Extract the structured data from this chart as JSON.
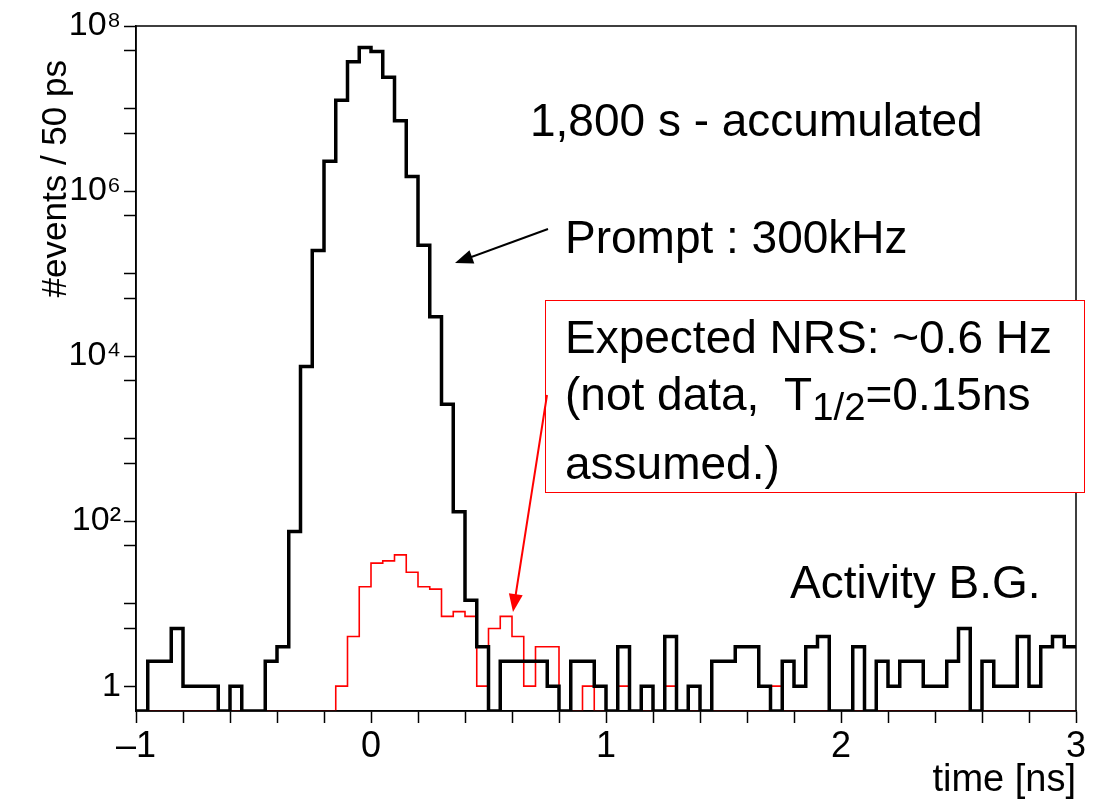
{
  "chart_data": {
    "type": "histogram",
    "xlabel": "time [ns]",
    "ylabel": "#events / 50 ps",
    "log": "y",
    "bins": [
      -1,
      -0.95,
      -0.9,
      -0.85,
      -0.8,
      -0.75,
      -0.7,
      -0.65,
      -0.6,
      -0.55,
      -0.5,
      -0.45,
      -0.4,
      -0.35,
      -0.3,
      -0.25,
      -0.2,
      -0.15,
      -0.1,
      -0.05,
      0,
      0.05,
      0.1,
      0.15,
      0.2,
      0.25,
      0.3,
      0.35,
      0.4,
      0.45,
      0.5,
      0.55,
      0.6,
      0.65,
      0.7,
      0.75,
      0.8,
      0.85,
      0.9,
      0.95,
      1,
      1.05,
      1.1,
      1.15,
      1.2,
      1.25,
      1.3,
      1.35,
      1.4,
      1.45,
      1.5,
      1.55,
      1.6,
      1.65,
      1.7,
      1.75,
      1.8,
      1.85,
      1.9,
      1.95,
      2,
      2.05,
      2.1,
      2.15,
      2.2,
      2.25,
      2.3,
      2.35,
      2.4,
      2.45,
      2.5,
      2.55,
      2.6,
      2.65,
      2.7,
      2.75,
      2.8,
      2.85,
      2.9,
      2.95,
      3
    ],
    "series": [
      {
        "color": "#000000",
        "values": [
          null,
          2,
          2,
          5,
          1,
          1,
          1,
          null,
          1,
          null,
          null,
          2,
          3,
          75,
          7500,
          190000,
          2300000,
          12600000,
          37000000,
          55000000,
          49000000,
          24000000,
          7100000,
          1500000,
          220000,
          30000,
          2600,
          130,
          11,
          3,
          null,
          2,
          2,
          2,
          2,
          1,
          null,
          2,
          2,
          1,
          null,
          3,
          null,
          1,
          null,
          4,
          null,
          1,
          null,
          2,
          2,
          3,
          3,
          1,
          null,
          2,
          1,
          3,
          4,
          null,
          null,
          3,
          null,
          2,
          1,
          2,
          2,
          1,
          1,
          2,
          5,
          null,
          2,
          1,
          1,
          4,
          1,
          3,
          4,
          3
        ]
      },
      {
        "color": "#ff0000",
        "values": [
          null,
          null,
          null,
          null,
          null,
          null,
          null,
          null,
          null,
          null,
          null,
          null,
          null,
          null,
          null,
          null,
          null,
          1,
          4,
          16,
          31,
          33,
          39,
          24,
          16,
          15,
          7,
          8,
          7,
          1,
          5,
          7,
          4,
          1,
          3,
          3,
          null,
          null,
          1,
          null,
          null,
          1,
          null,
          null,
          null,
          1,
          null,
          null,
          null,
          null,
          null,
          null,
          null,
          null,
          1,
          null,
          null,
          null,
          null,
          null,
          null,
          null,
          null,
          null,
          null,
          null,
          null,
          null,
          null,
          null,
          null,
          null,
          null,
          null,
          null,
          null,
          null,
          null,
          null,
          null
        ]
      }
    ],
    "xlim": [
      -1,
      3
    ],
    "xticks": [
      {
        "value": -1,
        "label": "–1"
      },
      {
        "value": -0.8,
        "label": null
      },
      {
        "value": -0.6,
        "label": null
      },
      {
        "value": -0.4,
        "label": null
      },
      {
        "value": -0.2,
        "label": null
      },
      0,
      {
        "value": 0.2,
        "label": null
      },
      {
        "value": 0.4,
        "label": null
      },
      {
        "value": 0.6,
        "label": null
      },
      {
        "value": 0.8,
        "label": null
      },
      1,
      {
        "value": 1.2,
        "label": null
      },
      {
        "value": 1.4,
        "label": null
      },
      {
        "value": 1.6,
        "label": null
      },
      {
        "value": 1.8,
        "label": null
      },
      2,
      {
        "value": 2.2,
        "label": null
      },
      {
        "value": 2.4,
        "label": null
      },
      {
        "value": 2.6,
        "label": null
      },
      {
        "value": 2.8,
        "label": null
      },
      3
    ],
    "ylim": [
      0.5,
      100000000
    ],
    "yticks": [
      1,
      {
        "value": 5,
        "label": null
      },
      {
        "value": 10,
        "label": null
      },
      {
        "value": 50,
        "label": null
      },
      {
        "value": 100,
        "label": "10²"
      },
      {
        "value": 500,
        "label": null
      },
      {
        "value": 1000,
        "label": null
      },
      {
        "value": 5000,
        "label": null
      },
      {
        "value": 10000,
        "label": "10⁴"
      },
      {
        "value": 50000,
        "label": null
      },
      {
        "value": 100000,
        "label": null
      },
      {
        "value": 500000,
        "label": null
      },
      {
        "value": 1000000,
        "label": "10⁶"
      },
      {
        "value": 5000000,
        "label": null
      },
      {
        "value": 10000000,
        "label": null
      },
      {
        "value": 50000000,
        "label": null
      },
      {
        "value": 100000000,
        "label": "10⁸"
      }
    ],
    "annotations": [
      "1,800 s - accumulated",
      "Prompt : 300kHz",
      "Expected NRS: ~0.6 Hz (not data,  T$_{1/2}$=0.15ns assumed.)",
      "Activity B.G."
    ]
  }
}
